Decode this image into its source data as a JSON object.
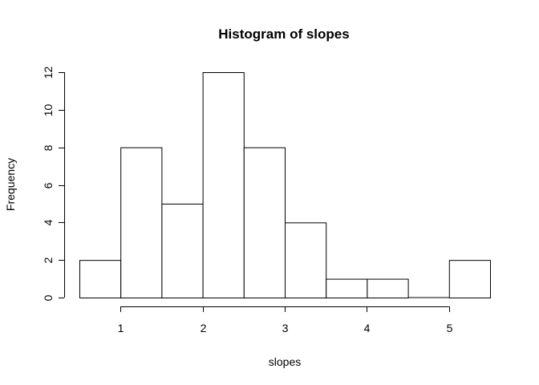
{
  "chart_data": {
    "type": "bar",
    "title": "Histogram of slopes",
    "xlabel": "slopes",
    "ylabel": "Frequency",
    "bins": [
      {
        "from": 0.5,
        "to": 1.0,
        "count": 2
      },
      {
        "from": 1.0,
        "to": 1.5,
        "count": 8
      },
      {
        "from": 1.5,
        "to": 2.0,
        "count": 5
      },
      {
        "from": 2.0,
        "to": 2.5,
        "count": 12
      },
      {
        "from": 2.5,
        "to": 3.0,
        "count": 8
      },
      {
        "from": 3.0,
        "to": 3.5,
        "count": 4
      },
      {
        "from": 3.5,
        "to": 4.0,
        "count": 1
      },
      {
        "from": 4.0,
        "to": 4.5,
        "count": 1
      },
      {
        "from": 4.5,
        "to": 5.0,
        "count": 0
      },
      {
        "from": 5.0,
        "to": 5.5,
        "count": 2
      }
    ],
    "xticks": [
      1,
      2,
      3,
      4,
      5
    ],
    "yticks": [
      0,
      2,
      4,
      6,
      8,
      10,
      12
    ],
    "xlim": [
      0.5,
      5.5
    ],
    "ylim": [
      0,
      12
    ],
    "grid": false
  }
}
